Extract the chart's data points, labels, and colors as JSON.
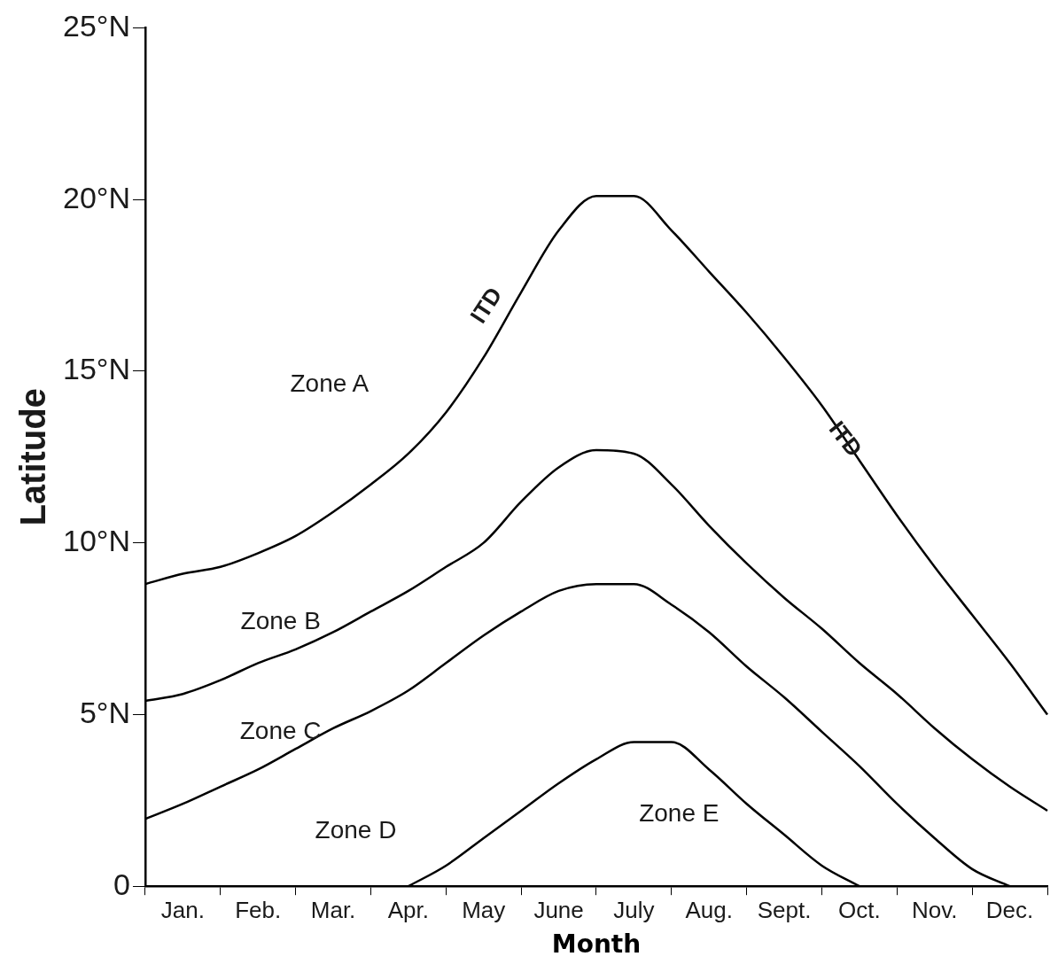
{
  "chart_data": {
    "type": "line",
    "xlabel": "Month",
    "ylabel": "Latitude",
    "categories": [
      null,
      "Jan.",
      null,
      "Feb.",
      null,
      "Mar.",
      null,
      "Apr.",
      null,
      "May",
      null,
      "June",
      null,
      "July",
      null,
      "Aug.",
      null,
      "Sept.",
      null,
      "Oct.",
      null,
      "Nov.",
      null,
      "Dec.",
      null
    ],
    "ylim": [
      0,
      25
    ],
    "yticks": [
      0,
      {
        "value": 5,
        "label": "5°N"
      },
      {
        "value": 10,
        "label": "10°N"
      },
      {
        "value": 15,
        "label": "15°N"
      },
      {
        "value": 20,
        "label": "20°N"
      },
      {
        "value": 25,
        "label": "25°N"
      }
    ],
    "grid": false,
    "legend": false,
    "marker": "none",
    "line_style": "solid",
    "series": [
      {
        "color": "#000000",
        "values": [
          8.8,
          9.1,
          9.3,
          9.7,
          10.2,
          10.9,
          11.7,
          12.6,
          13.8,
          15.4,
          17.3,
          19.1,
          20.1,
          20.1,
          19.1,
          17.9,
          16.7,
          15.4,
          14.0,
          12.4,
          10.8,
          9.3,
          7.9,
          6.5,
          5.0
        ]
      },
      {
        "color": "#000000",
        "values": [
          5.4,
          5.6,
          6.0,
          6.5,
          6.9,
          7.4,
          8.0,
          8.6,
          9.3,
          10.0,
          11.2,
          12.2,
          12.7,
          12.6,
          11.7,
          10.5,
          9.4,
          8.4,
          7.5,
          6.5,
          5.6,
          4.6,
          3.7,
          2.9,
          2.2
        ]
      },
      {
        "color": "#000000",
        "values": [
          1.96,
          2.4,
          2.9,
          3.4,
          4.0,
          4.6,
          5.1,
          5.7,
          6.5,
          7.3,
          8.0,
          8.6,
          8.8,
          8.8,
          8.2,
          7.4,
          6.4,
          5.5,
          4.5,
          3.5,
          2.4,
          1.4,
          0.5,
          0,
          null
        ]
      },
      {
        "color": "#000000",
        "values": [
          null,
          null,
          null,
          null,
          null,
          null,
          null,
          0,
          0.6,
          1.4,
          2.2,
          3.0,
          3.7,
          4.2,
          4.2,
          3.4,
          2.4,
          1.5,
          0.6,
          0,
          null,
          null,
          null,
          null,
          null
        ]
      }
    ],
    "annotations": [
      "Zone A",
      "Zone B",
      "Zone C",
      "Zone D",
      "Zone E",
      "ITD",
      "ITD"
    ]
  }
}
